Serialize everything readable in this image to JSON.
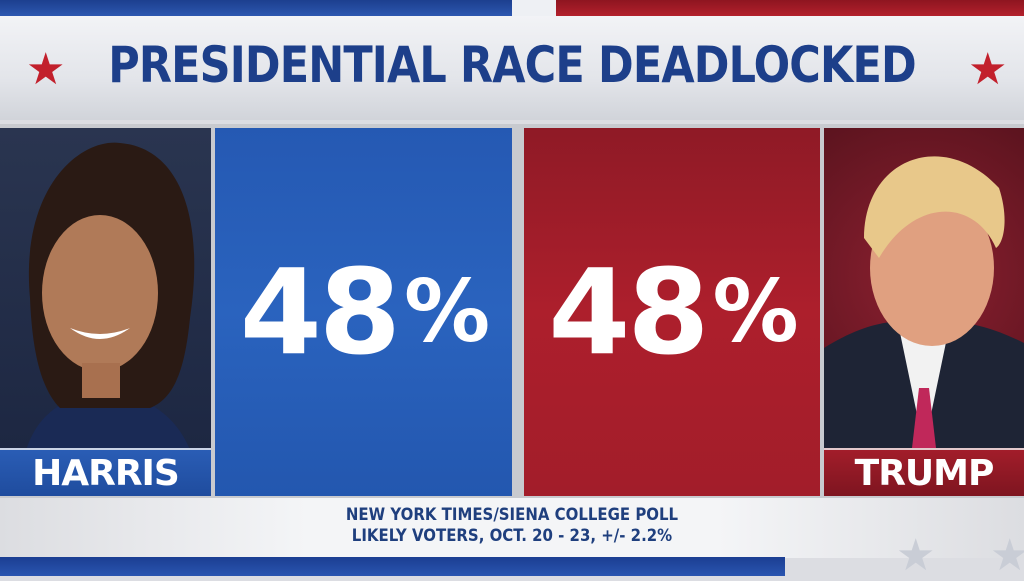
{
  "header": {
    "title": "PRESIDENTIAL RACE DEADLOCKED"
  },
  "candidates": [
    {
      "name": "HARRIS",
      "value": "48",
      "unit": "%",
      "color": "#2a63be"
    },
    {
      "name": "TRUMP",
      "value": "48",
      "unit": "%",
      "color": "#ad1f2c"
    }
  ],
  "caption": {
    "line1": "NEW YORK TIMES/SIENA COLLEGE POLL",
    "line2": "LIKELY VOTERS, OCT. 20 - 23, +/- 2.2%"
  },
  "icons": {
    "title_star": "star-icon",
    "decor_star": "star-icon"
  },
  "colors": {
    "title": "#1d3f8a",
    "star": "#c2202c"
  }
}
